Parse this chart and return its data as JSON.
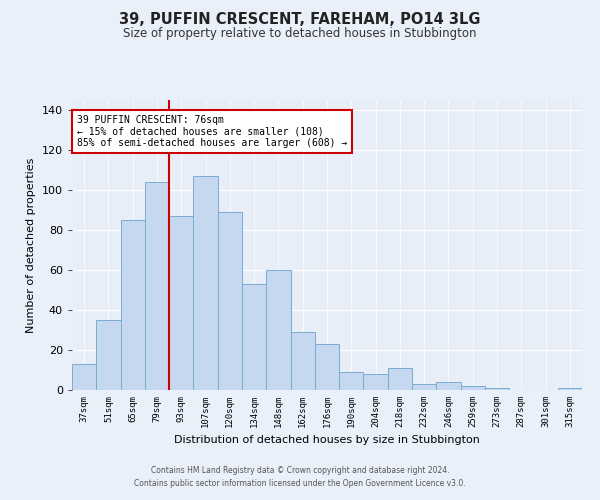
{
  "title": "39, PUFFIN CRESCENT, FAREHAM, PO14 3LG",
  "subtitle": "Size of property relative to detached houses in Stubbington",
  "xlabel": "Distribution of detached houses by size in Stubbington",
  "ylabel": "Number of detached properties",
  "bar_color": "#c5d8f0",
  "bar_edge_color": "#7aadd4",
  "background_color": "#e8eef8",
  "grid_color": "#ffffff",
  "categories": [
    "37sqm",
    "51sqm",
    "65sqm",
    "79sqm",
    "93sqm",
    "107sqm",
    "120sqm",
    "134sqm",
    "148sqm",
    "162sqm",
    "176sqm",
    "190sqm",
    "204sqm",
    "218sqm",
    "232sqm",
    "246sqm",
    "259sqm",
    "273sqm",
    "287sqm",
    "301sqm",
    "315sqm"
  ],
  "values": [
    13,
    35,
    85,
    104,
    87,
    107,
    89,
    53,
    60,
    29,
    23,
    9,
    8,
    11,
    3,
    4,
    2,
    1,
    0,
    0,
    1
  ],
  "red_line_x": 3.5,
  "annotation_title": "39 PUFFIN CRESCENT: 76sqm",
  "annotation_line1": "← 15% of detached houses are smaller (108)",
  "annotation_line2": "85% of semi-detached houses are larger (608) →",
  "annotation_box_color": "#ffffff",
  "annotation_box_edge_color": "#cc0000",
  "red_line_color": "#cc0000",
  "ylim": [
    0,
    145
  ],
  "yticks": [
    0,
    20,
    40,
    60,
    80,
    100,
    120,
    140
  ],
  "footer1": "Contains HM Land Registry data © Crown copyright and database right 2024.",
  "footer2": "Contains public sector information licensed under the Open Government Licence v3.0."
}
